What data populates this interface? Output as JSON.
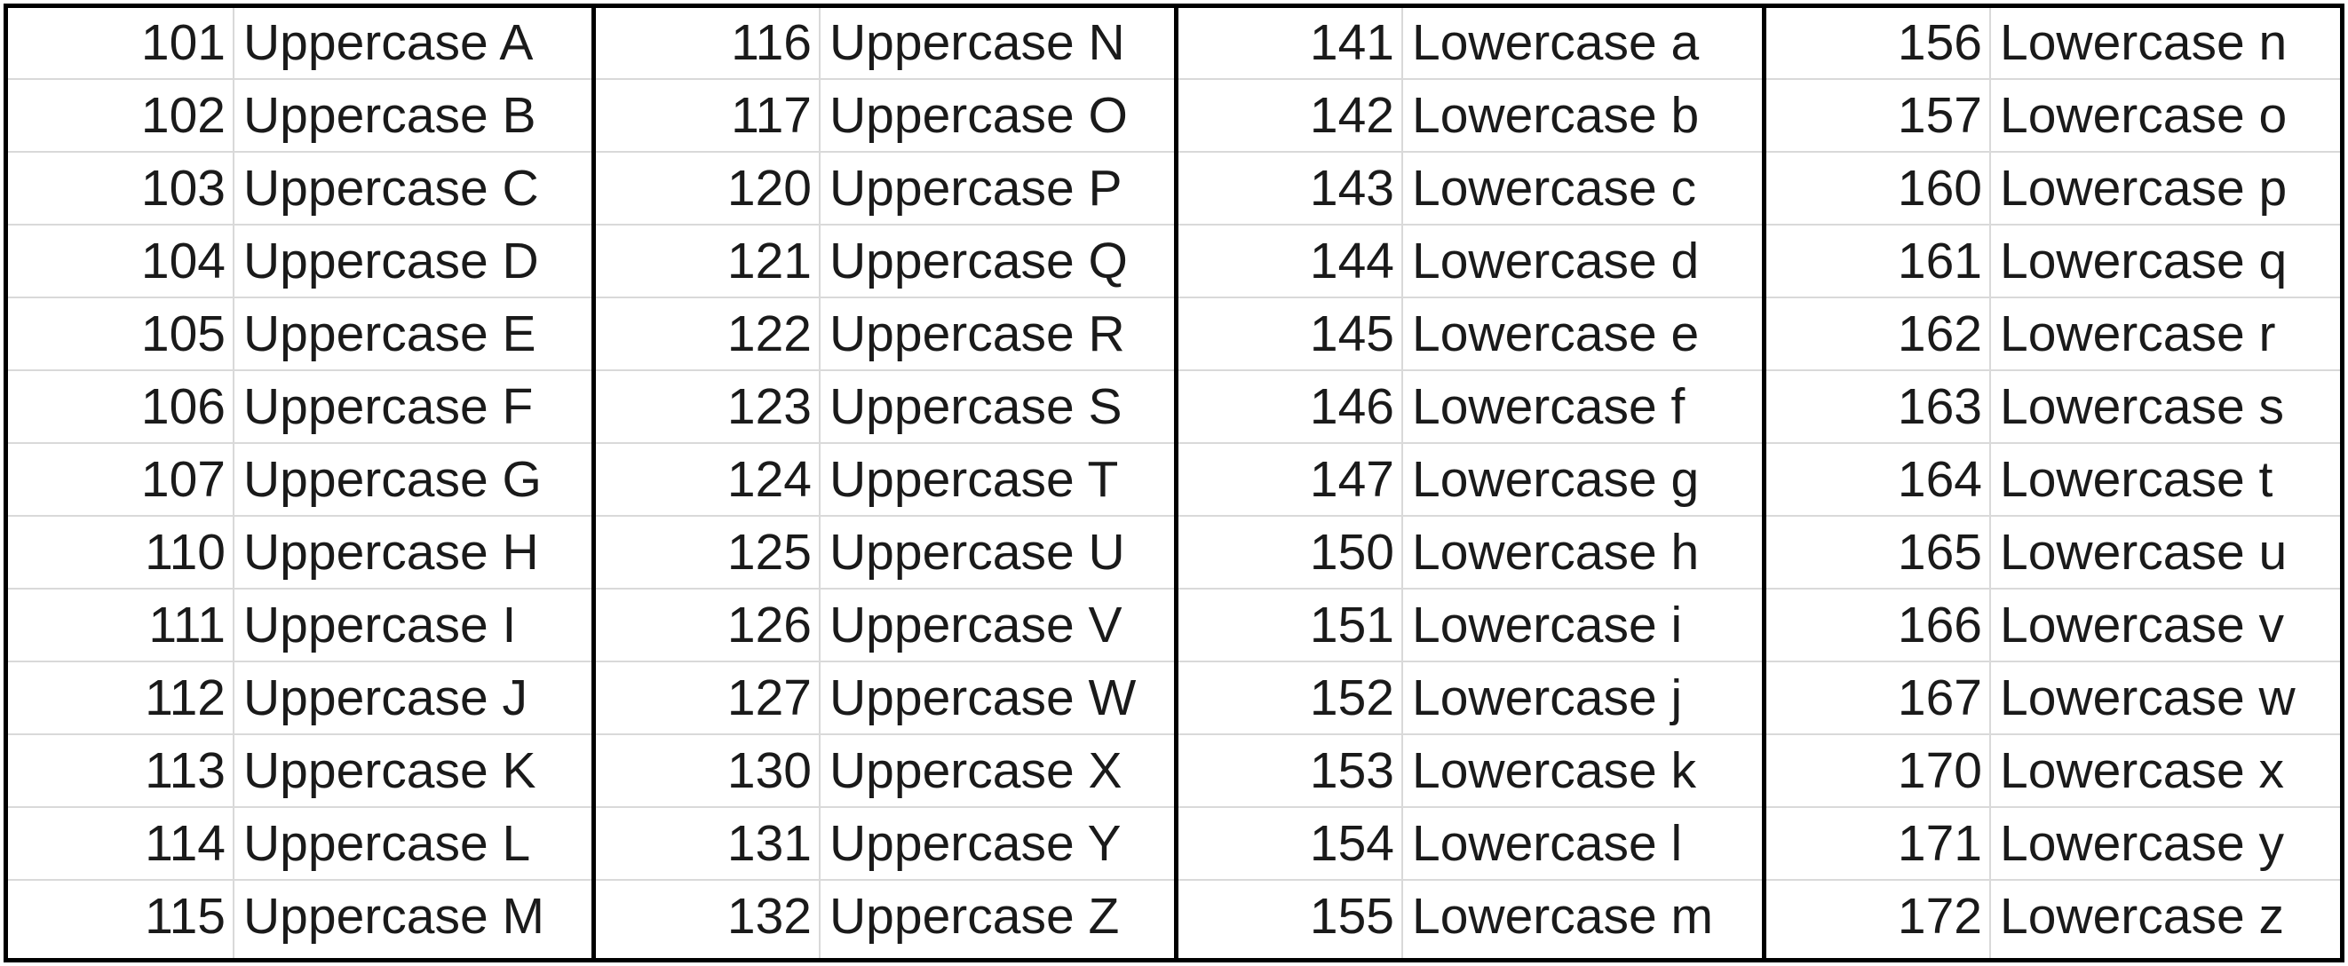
{
  "groups": [
    {
      "name": "uppercase-a-m",
      "rows": [
        {
          "code": "101",
          "label": "Uppercase A"
        },
        {
          "code": "102",
          "label": "Uppercase B"
        },
        {
          "code": "103",
          "label": "Uppercase C"
        },
        {
          "code": "104",
          "label": "Uppercase D"
        },
        {
          "code": "105",
          "label": "Uppercase E"
        },
        {
          "code": "106",
          "label": "Uppercase F"
        },
        {
          "code": "107",
          "label": "Uppercase G"
        },
        {
          "code": "110",
          "label": "Uppercase H"
        },
        {
          "code": "111",
          "label": "Uppercase I"
        },
        {
          "code": "112",
          "label": "Uppercase J"
        },
        {
          "code": "113",
          "label": "Uppercase K"
        },
        {
          "code": "114",
          "label": "Uppercase L"
        },
        {
          "code": "115",
          "label": "Uppercase M"
        }
      ]
    },
    {
      "name": "uppercase-n-z",
      "rows": [
        {
          "code": "116",
          "label": "Uppercase N"
        },
        {
          "code": "117",
          "label": "Uppercase O"
        },
        {
          "code": "120",
          "label": "Uppercase P"
        },
        {
          "code": "121",
          "label": "Uppercase Q"
        },
        {
          "code": "122",
          "label": "Uppercase R"
        },
        {
          "code": "123",
          "label": "Uppercase S"
        },
        {
          "code": "124",
          "label": "Uppercase T"
        },
        {
          "code": "125",
          "label": "Uppercase U"
        },
        {
          "code": "126",
          "label": "Uppercase V"
        },
        {
          "code": "127",
          "label": "Uppercase W"
        },
        {
          "code": "130",
          "label": "Uppercase X"
        },
        {
          "code": "131",
          "label": "Uppercase Y"
        },
        {
          "code": "132",
          "label": "Uppercase Z"
        }
      ]
    },
    {
      "name": "lowercase-a-m",
      "rows": [
        {
          "code": "141",
          "label": "Lowercase a"
        },
        {
          "code": "142",
          "label": "Lowercase b"
        },
        {
          "code": "143",
          "label": "Lowercase c"
        },
        {
          "code": "144",
          "label": "Lowercase d"
        },
        {
          "code": "145",
          "label": "Lowercase e"
        },
        {
          "code": "146",
          "label": "Lowercase f"
        },
        {
          "code": "147",
          "label": "Lowercase g"
        },
        {
          "code": "150",
          "label": "Lowercase h"
        },
        {
          "code": "151",
          "label": "Lowercase i"
        },
        {
          "code": "152",
          "label": "Lowercase j"
        },
        {
          "code": "153",
          "label": "Lowercase k"
        },
        {
          "code": "154",
          "label": "Lowercase l"
        },
        {
          "code": "155",
          "label": "Lowercase m"
        }
      ]
    },
    {
      "name": "lowercase-n-z",
      "rows": [
        {
          "code": "156",
          "label": "Lowercase n"
        },
        {
          "code": "157",
          "label": "Lowercase o"
        },
        {
          "code": "160",
          "label": "Lowercase p"
        },
        {
          "code": "161",
          "label": "Lowercase q"
        },
        {
          "code": "162",
          "label": "Lowercase r"
        },
        {
          "code": "163",
          "label": "Lowercase s"
        },
        {
          "code": "164",
          "label": "Lowercase t"
        },
        {
          "code": "165",
          "label": "Lowercase u"
        },
        {
          "code": "166",
          "label": "Lowercase v"
        },
        {
          "code": "167",
          "label": "Lowercase w"
        },
        {
          "code": "170",
          "label": "Lowercase x"
        },
        {
          "code": "171",
          "label": "Lowercase y"
        },
        {
          "code": "172",
          "label": "Lowercase z"
        }
      ]
    }
  ],
  "colors": {
    "gridline": "#d9d9d9",
    "border": "#000000",
    "text": "#1a1a1a",
    "background": "#ffffff"
  }
}
